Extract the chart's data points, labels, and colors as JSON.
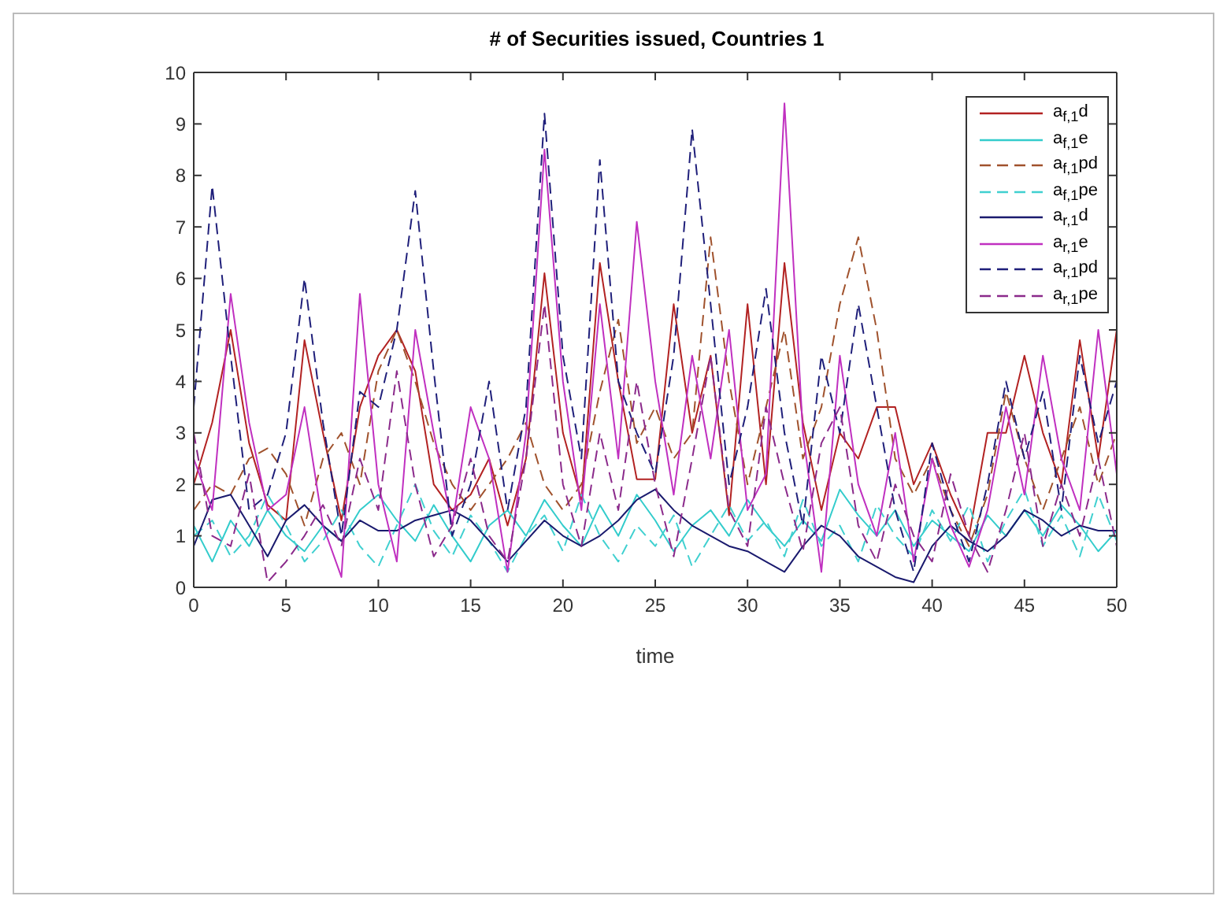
{
  "chart_data": {
    "type": "line",
    "title": "# of Securities issued, Countries 1",
    "xlabel": "time",
    "x": [
      0,
      1,
      2,
      3,
      4,
      5,
      6,
      7,
      8,
      9,
      10,
      11,
      12,
      13,
      14,
      15,
      16,
      17,
      18,
      19,
      20,
      21,
      22,
      23,
      24,
      25,
      26,
      27,
      28,
      29,
      30,
      31,
      32,
      33,
      34,
      35,
      36,
      37,
      38,
      39,
      40,
      41,
      42,
      43,
      44,
      45,
      46,
      47,
      48,
      49,
      50
    ],
    "xlim": [
      0,
      50
    ],
    "xticks": [
      0,
      5,
      10,
      15,
      20,
      25,
      30,
      35,
      40,
      45,
      50
    ],
    "ylim": [
      0,
      10
    ],
    "yticks": [
      0,
      1,
      2,
      3,
      4,
      5,
      6,
      7,
      8,
      9,
      10
    ],
    "grid": false,
    "legend": "top right",
    "series": [
      {
        "name": "a$_{f,1}$d",
        "color": "#b22222",
        "line_style": "solid",
        "values": [
          2.0,
          3.2,
          5.0,
          2.8,
          1.6,
          1.3,
          4.8,
          3.0,
          1.3,
          3.5,
          4.5,
          5.0,
          4.2,
          2.0,
          1.5,
          1.8,
          2.5,
          1.2,
          2.5,
          6.1,
          3.0,
          1.7,
          6.3,
          4.0,
          2.1,
          2.1,
          5.5,
          3.0,
          4.5,
          1.4,
          5.5,
          2.0,
          6.3,
          3.2,
          1.5,
          3.0,
          2.5,
          3.5,
          3.5,
          2.0,
          2.8,
          1.8,
          1.0,
          3.0,
          3.0,
          4.5,
          3.0,
          2.0,
          4.8,
          2.5,
          5.0
        ]
      },
      {
        "name": "a$_{f,1}$e",
        "color": "#33cccc",
        "line_style": "solid",
        "values": [
          1.2,
          0.5,
          1.3,
          0.8,
          1.5,
          1.0,
          0.7,
          1.2,
          0.9,
          1.5,
          1.8,
          1.3,
          0.9,
          1.6,
          1.0,
          0.5,
          1.2,
          1.5,
          1.0,
          1.7,
          1.2,
          0.8,
          1.6,
          1.0,
          1.8,
          1.3,
          0.7,
          1.2,
          1.5,
          1.0,
          1.7,
          1.2,
          0.8,
          1.3,
          0.9,
          1.9,
          1.4,
          1.0,
          1.5,
          0.8,
          1.3,
          1.0,
          0.7,
          1.4,
          1.0,
          1.5,
          1.0,
          1.6,
          1.2,
          0.7,
          1.1
        ]
      },
      {
        "name": "a$_{f,1}$pd",
        "color": "#a0522d",
        "line_style": "dashed",
        "values": [
          1.5,
          2.0,
          1.8,
          2.5,
          2.7,
          2.2,
          1.2,
          2.5,
          3.0,
          2.0,
          4.2,
          5.0,
          4.0,
          2.8,
          2.0,
          1.5,
          2.0,
          2.5,
          3.2,
          2.0,
          1.5,
          2.0,
          3.8,
          5.2,
          2.8,
          3.5,
          2.5,
          3.0,
          6.8,
          4.0,
          2.0,
          3.5,
          5.0,
          2.5,
          3.5,
          5.5,
          6.8,
          5.0,
          2.5,
          1.8,
          2.5,
          1.5,
          0.8,
          1.8,
          3.8,
          2.5,
          1.5,
          2.5,
          3.5,
          2.0,
          3.0
        ]
      },
      {
        "name": "a$_{f,1}$pe",
        "color": "#40d0d0",
        "line_style": "dashed",
        "values": [
          1.0,
          1.3,
          0.6,
          1.0,
          1.8,
          1.2,
          0.5,
          0.9,
          1.5,
          0.8,
          0.4,
          1.2,
          2.0,
          1.1,
          0.6,
          1.4,
          0.9,
          0.3,
          1.0,
          1.4,
          0.7,
          1.8,
          1.0,
          0.5,
          1.2,
          0.8,
          1.4,
          0.4,
          1.0,
          1.6,
          0.9,
          1.3,
          0.6,
          1.7,
          0.8,
          1.2,
          0.5,
          1.6,
          1.0,
          0.6,
          1.5,
          0.9,
          1.6,
          0.5,
          1.3,
          1.9,
          0.8,
          1.4,
          0.6,
          1.8,
          0.9
        ]
      },
      {
        "name": "a$_{r,1}$d",
        "color": "#1a1a6e",
        "line_style": "solid",
        "values": [
          0.8,
          1.7,
          1.8,
          1.2,
          0.6,
          1.3,
          1.6,
          1.2,
          0.9,
          1.3,
          1.1,
          1.1,
          1.3,
          1.4,
          1.5,
          1.3,
          0.9,
          0.5,
          0.9,
          1.3,
          1.0,
          0.8,
          1.0,
          1.3,
          1.7,
          1.9,
          1.5,
          1.2,
          1.0,
          0.8,
          0.7,
          0.5,
          0.3,
          0.8,
          1.2,
          1.0,
          0.6,
          0.4,
          0.2,
          0.1,
          0.8,
          1.2,
          0.9,
          0.7,
          1.0,
          1.5,
          1.3,
          1.0,
          1.2,
          1.1,
          1.1
        ]
      },
      {
        "name": "a$_{r,1}$e",
        "color": "#c030c0",
        "line_style": "solid",
        "values": [
          2.5,
          1.5,
          5.7,
          3.2,
          1.5,
          1.8,
          3.5,
          1.2,
          0.2,
          5.7,
          2.0,
          0.5,
          5.0,
          3.0,
          1.2,
          3.5,
          2.5,
          0.3,
          3.0,
          8.5,
          4.0,
          1.5,
          5.5,
          2.5,
          7.1,
          4.0,
          1.8,
          4.5,
          2.5,
          5.0,
          1.5,
          2.2,
          9.4,
          3.0,
          0.3,
          4.5,
          2.0,
          1.0,
          3.0,
          0.5,
          2.5,
          1.2,
          0.4,
          1.5,
          3.5,
          1.8,
          4.5,
          2.5,
          1.5,
          5.0,
          2.2
        ]
      },
      {
        "name": "a$_{r,1}$pd",
        "color": "#1f1f7a",
        "line_style": "dashed",
        "values": [
          3.5,
          7.8,
          4.5,
          1.5,
          1.8,
          3.0,
          6.0,
          3.2,
          1.0,
          3.8,
          3.5,
          5.0,
          7.7,
          4.2,
          1.0,
          2.0,
          4.0,
          1.5,
          3.5,
          9.2,
          4.5,
          2.5,
          8.3,
          4.0,
          3.0,
          2.2,
          4.5,
          8.9,
          5.5,
          2.0,
          3.5,
          5.8,
          3.0,
          1.2,
          4.5,
          3.0,
          5.5,
          3.5,
          1.5,
          0.3,
          2.8,
          1.5,
          0.5,
          2.0,
          4.0,
          2.5,
          3.8,
          1.5,
          4.5,
          2.8,
          4.0
        ]
      },
      {
        "name": "a$_{r,1}$pe",
        "color": "#8b2a8b",
        "line_style": "dashed",
        "values": [
          3.0,
          1.0,
          0.8,
          2.2,
          0.1,
          0.5,
          1.0,
          1.6,
          0.8,
          2.5,
          1.5,
          4.2,
          2.0,
          0.6,
          1.2,
          2.5,
          1.0,
          0.5,
          2.5,
          5.5,
          2.0,
          0.8,
          3.0,
          1.5,
          4.0,
          2.0,
          0.6,
          2.5,
          4.5,
          1.5,
          0.8,
          3.5,
          2.0,
          0.7,
          2.8,
          3.5,
          1.2,
          0.5,
          2.0,
          1.0,
          0.5,
          2.2,
          1.0,
          0.3,
          1.5,
          3.0,
          0.8,
          2.0,
          1.0,
          2.5,
          0.8
        ]
      }
    ]
  }
}
